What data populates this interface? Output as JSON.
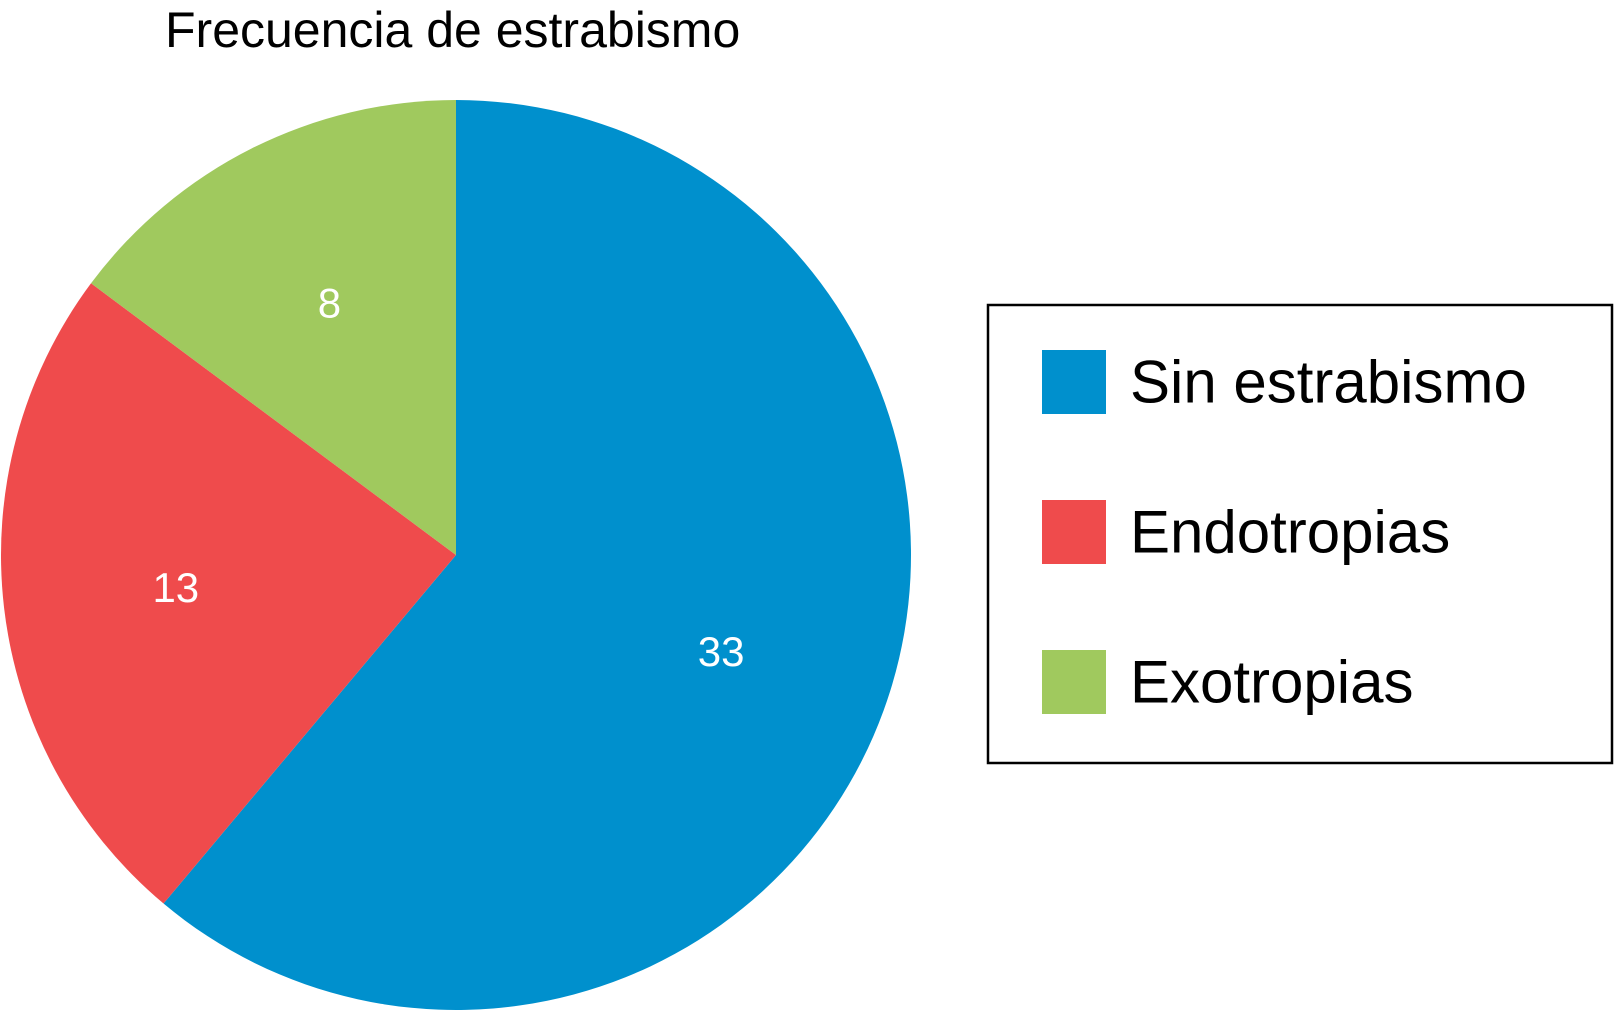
{
  "chart_data": {
    "type": "pie",
    "title": "Frecuencia de estrabismo",
    "start_angle_deg": 0,
    "direction": "clockwise",
    "legend_position": "right",
    "slices": [
      {
        "label": "Sin estrabismo",
        "value": 33,
        "color": "#0090cd"
      },
      {
        "label": "Endotropias",
        "value": 13,
        "color": "#ef4b4c"
      },
      {
        "label": "Exotropias",
        "value": 8,
        "color": "#a0c95e"
      }
    ]
  }
}
